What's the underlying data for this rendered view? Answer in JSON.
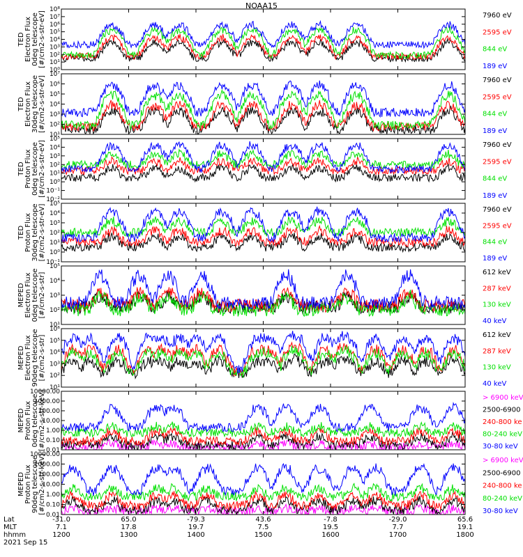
{
  "title": "NOAA15",
  "footer": {
    "row_labels": [
      "Lat",
      "MLT",
      "hhmm"
    ],
    "date": "2021 Sep 15",
    "columns": [
      {
        "lat": "-31.0",
        "mlt": "7.1",
        "hhmm": "1200"
      },
      {
        "lat": "65.0",
        "mlt": "17.8",
        "hhmm": "1300"
      },
      {
        "lat": "-79.3",
        "mlt": "19.7",
        "hhmm": "1400"
      },
      {
        "lat": "43.6",
        "mlt": "7.5",
        "hhmm": "1500"
      },
      {
        "lat": "-7.8",
        "mlt": "19.5",
        "hhmm": "1600"
      },
      {
        "lat": "-29.0",
        "mlt": "7.7",
        "hhmm": "1700"
      },
      {
        "lat": "65.6",
        "mlt": "19.1",
        "hhmm": "1800"
      }
    ]
  },
  "colors": {
    "blue": "#0000ff",
    "red": "#ff0000",
    "green": "#00e000",
    "black": "#000000",
    "magenta": "#ff00ff"
  },
  "chart_data": [
    {
      "type": "line",
      "ylabel": [
        "TED",
        "Electron Flux",
        "0deg telescope",
        "[#/cm2-s-str-eV]"
      ],
      "y_scale": "log",
      "ylim": [
        1,
        100000000
      ],
      "yticks": [
        "10⁰",
        "10¹",
        "10²",
        "10³",
        "10⁴",
        "10⁵",
        "10⁶",
        "10⁷",
        "10⁸"
      ],
      "series": [
        {
          "name": "7960 eV",
          "color": "#000000",
          "base": 30,
          "peak": 5000
        },
        {
          "name": "2595 eV",
          "color": "#ff0000",
          "base": 60,
          "peak": 20000
        },
        {
          "name": "844 eV",
          "color": "#00e000",
          "base": 80,
          "peak": 200000
        },
        {
          "name": "189 eV",
          "color": "#0000ff",
          "base": 2000,
          "peak": 1000000
        }
      ],
      "peaks": [
        1245,
        1323,
        1345,
        1423,
        1450,
        1525,
        1550,
        1623,
        1745
      ]
    },
    {
      "type": "line",
      "ylabel": [
        "TED",
        "Electron Flux",
        "30deg telescope",
        "[#/cm2-s-str-eV]"
      ],
      "y_scale": "log",
      "ylim": [
        10,
        10000000
      ],
      "yticks": [
        "10¹",
        "10²",
        "10³",
        "10⁴",
        "10⁵",
        "10⁶",
        "10⁷"
      ],
      "series": [
        {
          "name": "7960 eV",
          "color": "#000000",
          "base": 30,
          "peak": 3000
        },
        {
          "name": "2595 eV",
          "color": "#ff0000",
          "base": 60,
          "peak": 10000
        },
        {
          "name": "844 eV",
          "color": "#00e000",
          "base": 80,
          "peak": 100000
        },
        {
          "name": "189 eV",
          "color": "#0000ff",
          "base": 1500,
          "peak": 1000000
        }
      ],
      "peaks": [
        1245,
        1323,
        1345,
        1423,
        1450,
        1525,
        1550,
        1623,
        1745
      ]
    },
    {
      "type": "line",
      "ylabel": [
        "TED",
        "Proton Flux",
        "0deg telescope",
        "[#/cm2-s-str-eV]"
      ],
      "y_scale": "log",
      "ylim": [
        0.01,
        100000
      ],
      "yticks": [
        "10⁻²",
        "10⁻¹",
        "10⁰",
        "10¹",
        "10²",
        "10³",
        "10⁴",
        "10⁵"
      ],
      "series": [
        {
          "name": "7960 eV",
          "color": "#000000",
          "base": 3,
          "peak": 50
        },
        {
          "name": "2595 eV",
          "color": "#ff0000",
          "base": 20,
          "peak": 300
        },
        {
          "name": "844 eV",
          "color": "#00e000",
          "base": 100,
          "peak": 2000
        },
        {
          "name": "189 eV",
          "color": "#0000ff",
          "base": 30,
          "peak": 20000
        }
      ],
      "peaks": [
        1245,
        1323,
        1345,
        1423,
        1450,
        1525,
        1550,
        1623,
        1745
      ]
    },
    {
      "type": "line",
      "ylabel": [
        "TED",
        "Proton Flux",
        "30deg telescope",
        "[#/cm2-s-str-eV]"
      ],
      "y_scale": "log",
      "ylim": [
        0.1,
        100000
      ],
      "yticks": [
        "10⁻¹",
        "10⁰",
        "10¹",
        "10²",
        "10³",
        "10⁴",
        "10⁵"
      ],
      "series": [
        {
          "name": "7960 eV",
          "color": "#000000",
          "base": 3,
          "peak": 50
        },
        {
          "name": "2595 eV",
          "color": "#ff0000",
          "base": 10,
          "peak": 200
        },
        {
          "name": "844 eV",
          "color": "#00e000",
          "base": 100,
          "peak": 2000
        },
        {
          "name": "189 eV",
          "color": "#0000ff",
          "base": 30,
          "peak": 20000
        }
      ],
      "peaks": [
        1245,
        1323,
        1345,
        1423,
        1450,
        1525,
        1550,
        1623,
        1745
      ]
    },
    {
      "type": "line",
      "ylabel": [
        "MEPED",
        "Electron Flux",
        "0deg telescope",
        "[#/cm2-s-str]"
      ],
      "y_scale": "log",
      "ylim": [
        10,
        100000
      ],
      "yticks": [
        "10¹",
        "10²",
        "10³",
        "10⁴",
        "10⁵"
      ],
      "series": [
        {
          "name": "612 keV",
          "color": "#000000",
          "base": 150,
          "peak": 1000
        },
        {
          "name": "287 keV",
          "color": "#ff0000",
          "base": 200,
          "peak": 2000
        },
        {
          "name": "130 keV",
          "color": "#00e000",
          "base": 100,
          "peak": 1000
        },
        {
          "name": "40 keV",
          "color": "#0000ff",
          "base": 300,
          "peak": 30000
        }
      ],
      "peaks": [
        1235,
        1310,
        1335,
        1405,
        1520,
        1615,
        1710
      ]
    },
    {
      "type": "line",
      "ylabel": [
        "MEPED",
        "Electron Flux",
        "90deg telescope",
        "[#/cm2-s-str]"
      ],
      "y_scale": "log",
      "ylim": [
        10,
        1000000
      ],
      "yticks": [
        "10¹",
        "10²",
        "10³",
        "10⁴",
        "10⁵",
        "10⁶"
      ],
      "series": [
        {
          "name": "612 keV",
          "color": "#000000",
          "base": 150,
          "peak": 2000
        },
        {
          "name": "287 keV",
          "color": "#ff0000",
          "base": 200,
          "peak": 20000
        },
        {
          "name": "130 keV",
          "color": "#00e000",
          "base": 150,
          "peak": 10000
        },
        {
          "name": "40 keV",
          "color": "#0000ff",
          "base": 300,
          "peak": 200000
        }
      ],
      "peaks": [
        1210,
        1225,
        1250,
        1318,
        1330,
        1345,
        1400,
        1420,
        1455,
        1505,
        1525,
        1530,
        1555,
        1610,
        1615,
        1640,
        1705,
        1725,
        1750
      ]
    },
    {
      "type": "line",
      "ylabel": [
        "MEPED",
        "Proton Flux",
        "0deg telescope",
        "[#/cm2-s-str-keV]"
      ],
      "y_scale": "log",
      "ylim": [
        0.01,
        10000
      ],
      "yticks": [
        "0.01",
        "0.10",
        "1.00",
        "10.00",
        "100.00",
        "1000.00",
        "10000.00"
      ],
      "series": [
        {
          "name": "> 6900 keV",
          "color": "#ff00ff",
          "base": 0.02,
          "peak": 0.05
        },
        {
          "name": "2500-6900",
          "color": "#000000",
          "base": 0.03,
          "peak": 0.3
        },
        {
          "name": "240-800 ke",
          "color": "#ff0000",
          "base": 0.08,
          "peak": 1
        },
        {
          "name": "80-240 keV",
          "color": "#00e000",
          "base": 0.6,
          "peak": 3
        },
        {
          "name": "30-80 keV",
          "color": "#0000ff",
          "base": 2,
          "peak": 300
        }
      ],
      "peaks": [
        1245,
        1325,
        1340,
        1455,
        1520,
        1550,
        1635,
        1720,
        1750
      ]
    },
    {
      "type": "line",
      "ylabel": [
        "MEPED",
        "Proton Flux",
        "90deg telescope",
        "[#/cm2-s-str-keV]"
      ],
      "y_scale": "log",
      "ylim": [
        0.01,
        10000
      ],
      "yticks": [
        "0.01",
        "0.10",
        "1.00",
        "10.00",
        "100.00",
        "1000.00",
        "10000.00"
      ],
      "series": [
        {
          "name": "> 6900 keV",
          "color": "#ff00ff",
          "base": 0.02,
          "peak": 0.05
        },
        {
          "name": "2500-6900",
          "color": "#000000",
          "base": 0.03,
          "peak": 0.3
        },
        {
          "name": "240-800 ke",
          "color": "#ff0000",
          "base": 0.08,
          "peak": 1
        },
        {
          "name": "80-240 keV",
          "color": "#00e000",
          "base": 0.6,
          "peak": 5
        },
        {
          "name": "30-80 keV",
          "color": "#0000ff",
          "base": 2,
          "peak": 500
        }
      ],
      "peaks": [
        1210,
        1245,
        1325,
        1340,
        1410,
        1455,
        1520,
        1550,
        1620,
        1640,
        1720,
        1750
      ]
    }
  ]
}
